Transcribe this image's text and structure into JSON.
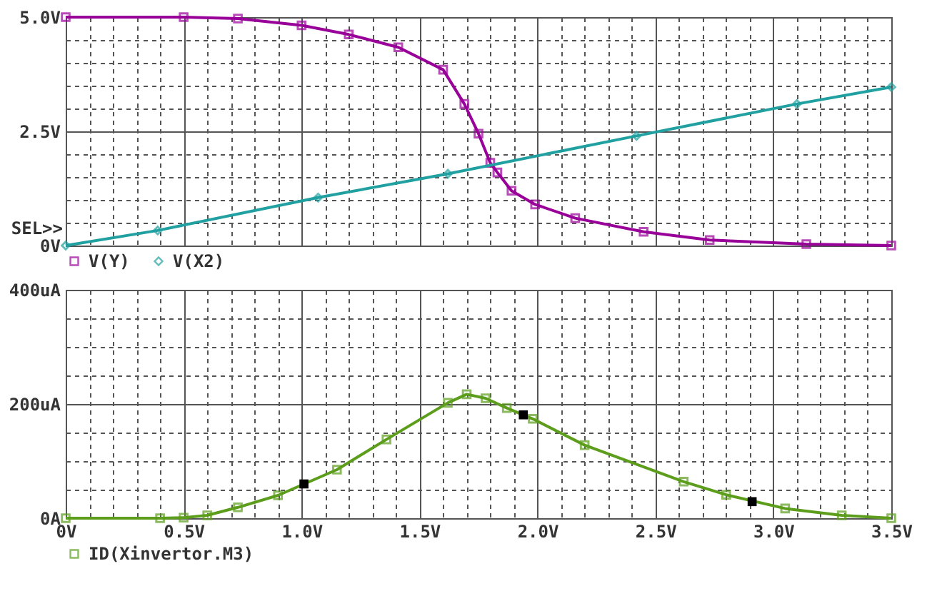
{
  "chart_data": [
    {
      "type": "line",
      "xlim": [
        0,
        3.5
      ],
      "ylim": [
        0,
        5
      ],
      "xticks": [
        {
          "value": 0,
          "label": null
        },
        {
          "value": 0.1,
          "label": null
        },
        {
          "value": 0.2,
          "label": null
        },
        {
          "value": 0.3,
          "label": null
        },
        {
          "value": 0.4,
          "label": null
        },
        {
          "value": 0.5,
          "label": null
        },
        {
          "value": 0.6,
          "label": null
        },
        {
          "value": 0.7,
          "label": null
        },
        {
          "value": 0.8,
          "label": null
        },
        {
          "value": 0.9,
          "label": null
        },
        {
          "value": 1,
          "label": null
        },
        {
          "value": 1.1,
          "label": null
        },
        {
          "value": 1.2,
          "label": null
        },
        {
          "value": 1.3,
          "label": null
        },
        {
          "value": 1.4,
          "label": null
        },
        {
          "value": 1.5,
          "label": null
        },
        {
          "value": 1.6,
          "label": null
        },
        {
          "value": 1.7,
          "label": null
        },
        {
          "value": 1.8,
          "label": null
        },
        {
          "value": 1.9,
          "label": null
        },
        {
          "value": 2,
          "label": null
        },
        {
          "value": 2.1,
          "label": null
        },
        {
          "value": 2.2,
          "label": null
        },
        {
          "value": 2.3,
          "label": null
        },
        {
          "value": 2.4,
          "label": null
        },
        {
          "value": 2.5,
          "label": null
        },
        {
          "value": 2.6,
          "label": null
        },
        {
          "value": 2.7,
          "label": null
        },
        {
          "value": 2.8,
          "label": null
        },
        {
          "value": 2.9,
          "label": null
        },
        {
          "value": 3,
          "label": null
        },
        {
          "value": 3.1,
          "label": null
        },
        {
          "value": 3.2,
          "label": null
        },
        {
          "value": 3.3,
          "label": null
        },
        {
          "value": 3.4,
          "label": null
        },
        {
          "value": 3.5,
          "label": null
        }
      ],
      "yticks": [
        {
          "value": 0,
          "label": "0V"
        },
        {
          "value": 0.5,
          "label": null
        },
        {
          "value": 1,
          "label": null
        },
        {
          "value": 1.5,
          "label": null
        },
        {
          "value": 2,
          "label": null
        },
        {
          "value": 2.5,
          "label": "2.5V"
        },
        {
          "value": 3,
          "label": null
        },
        {
          "value": 3.5,
          "label": null
        },
        {
          "value": 4,
          "label": null
        },
        {
          "value": 4.5,
          "label": null
        },
        {
          "value": 5,
          "label": "5.0V"
        }
      ],
      "grid": true,
      "legend": "bottom",
      "tick_labels": "y",
      "annotations": [
        "SEL>>"
      ],
      "series": [
        {
          "name": "V(Y)",
          "color": "#990099",
          "marker": "square",
          "x": [
            0,
            0.5,
            0.73,
            1.0,
            1.2,
            1.41,
            1.6,
            1.69,
            1.75,
            1.8,
            1.83,
            1.89,
            1.99,
            2.16,
            2.45,
            2.73,
            3.14,
            3.5
          ],
          "values": [
            5.0,
            5.0,
            4.97,
            4.82,
            4.62,
            4.34,
            3.85,
            3.1,
            2.45,
            1.81,
            1.6,
            1.2,
            0.9,
            0.6,
            0.3,
            0.12,
            0.03,
            0.0
          ]
        },
        {
          "name": "V(X2)",
          "color": "#20a0a0",
          "marker": "diamond",
          "x": [
            0,
            0.39,
            1.07,
            1.62,
            2.42,
            3.1,
            3.5
          ],
          "values": [
            0,
            0.33,
            1.05,
            1.57,
            2.4,
            3.1,
            3.47
          ]
        }
      ]
    },
    {
      "type": "line",
      "xlim": [
        0,
        3.5
      ],
      "ylim": [
        0,
        400
      ],
      "xticks": [
        {
          "value": 0,
          "label": "0V"
        },
        {
          "value": 0.1,
          "label": null
        },
        {
          "value": 0.2,
          "label": null
        },
        {
          "value": 0.3,
          "label": null
        },
        {
          "value": 0.4,
          "label": null
        },
        {
          "value": 0.5,
          "label": "0.5V"
        },
        {
          "value": 0.6,
          "label": null
        },
        {
          "value": 0.7,
          "label": null
        },
        {
          "value": 0.8,
          "label": null
        },
        {
          "value": 0.9,
          "label": null
        },
        {
          "value": 1,
          "label": "1.0V"
        },
        {
          "value": 1.1,
          "label": null
        },
        {
          "value": 1.2,
          "label": null
        },
        {
          "value": 1.3,
          "label": null
        },
        {
          "value": 1.4,
          "label": null
        },
        {
          "value": 1.5,
          "label": "1.5V"
        },
        {
          "value": 1.6,
          "label": null
        },
        {
          "value": 1.7,
          "label": null
        },
        {
          "value": 1.8,
          "label": null
        },
        {
          "value": 1.9,
          "label": null
        },
        {
          "value": 2,
          "label": "2.0V"
        },
        {
          "value": 2.1,
          "label": null
        },
        {
          "value": 2.2,
          "label": null
        },
        {
          "value": 2.3,
          "label": null
        },
        {
          "value": 2.4,
          "label": null
        },
        {
          "value": 2.5,
          "label": "2.5V"
        },
        {
          "value": 2.6,
          "label": null
        },
        {
          "value": 2.7,
          "label": null
        },
        {
          "value": 2.8,
          "label": null
        },
        {
          "value": 2.9,
          "label": null
        },
        {
          "value": 3,
          "label": "3.0V"
        },
        {
          "value": 3.1,
          "label": null
        },
        {
          "value": 3.2,
          "label": null
        },
        {
          "value": 3.3,
          "label": null
        },
        {
          "value": 3.4,
          "label": null
        },
        {
          "value": 3.5,
          "label": "3.5V"
        }
      ],
      "yticks": [
        {
          "value": 0,
          "label": "0A"
        },
        {
          "value": 50,
          "label": null
        },
        {
          "value": 100,
          "label": null
        },
        {
          "value": 150,
          "label": null
        },
        {
          "value": 200,
          "label": "200uA"
        },
        {
          "value": 250,
          "label": null
        },
        {
          "value": 300,
          "label": null
        },
        {
          "value": 350,
          "label": null
        },
        {
          "value": 400,
          "label": "400uA"
        }
      ],
      "grid": true,
      "legend": "bottom",
      "series": [
        {
          "name": "ID(Xinvertor.M3)",
          "color": "#5c9e1c",
          "marker": "square",
          "x": [
            0,
            0.4,
            0.5,
            0.6,
            0.73,
            0.9,
            1.15,
            1.36,
            1.62,
            1.7,
            1.78,
            1.87,
            1.98,
            2.2,
            2.62,
            2.8,
            3.05,
            3.29,
            3.5
          ],
          "values": [
            0,
            0,
            1,
            5,
            19,
            40,
            85,
            138,
            202,
            217,
            210,
            193,
            174,
            128,
            64,
            41,
            17,
            5,
            0
          ]
        },
        {
          "color": "#000000",
          "type": "scatter",
          "marker": "square",
          "x": [
            1.01,
            1.94,
            2.91
          ],
          "values": [
            60,
            181,
            29
          ]
        }
      ]
    }
  ]
}
